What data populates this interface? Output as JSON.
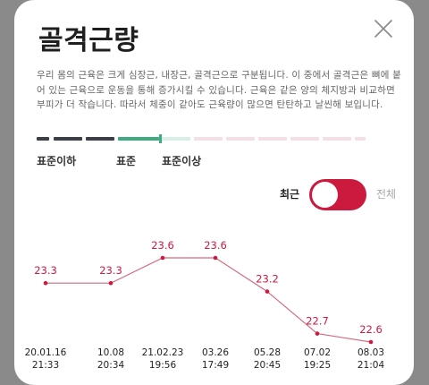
{
  "header": {
    "title": "골격근량"
  },
  "description": "우리 몸의 근육은 크게 심장근, 내장근, 골격근으로 구분됩니다. 이 중에서 골격근은 뼈에 붙어 있는 근육으로 운동을 통해 증가시킬 수 있습니다. 근육은 같은 양의 체지방과 비교하면 부피가 더 작습니다. 따라서 체중이 같아도 근육량이 많으면 탄탄하고 날씬해 보입니다.",
  "level": {
    "labels": [
      "표준이하",
      "표준",
      "표준이상"
    ],
    "current_fraction": 0.37
  },
  "toggle": {
    "left_label": "최근",
    "right_label": "전체",
    "state": "최근"
  },
  "colors": {
    "accent": "#cc1a3f",
    "line": "#d46a7e",
    "marker": "#3daa82",
    "below_segment": "#3b3f47",
    "standard_segment": "#d8efe5",
    "above_segment": "#f6dfe4"
  },
  "chart_data": {
    "type": "line",
    "x": [
      "20.01.16 21:33",
      "10.08 20:34",
      "21.02.23 19:56",
      "03.26 17:49",
      "05.28 20:45",
      "07.02 19:25",
      "08.03 21:04"
    ],
    "date_labels": [
      "20.01.16",
      "10.08",
      "21.02.23",
      "03.26",
      "05.28",
      "07.02",
      "08.03"
    ],
    "time_labels": [
      "21:33",
      "20:34",
      "19:56",
      "17:49",
      "20:45",
      "19:25",
      "21:04"
    ],
    "values": [
      23.3,
      23.3,
      23.6,
      23.6,
      23.2,
      22.7,
      22.6
    ],
    "value_labels": [
      "23.3",
      "23.3",
      "23.6",
      "23.6",
      "23.2",
      "22.7",
      "22.6"
    ]
  }
}
